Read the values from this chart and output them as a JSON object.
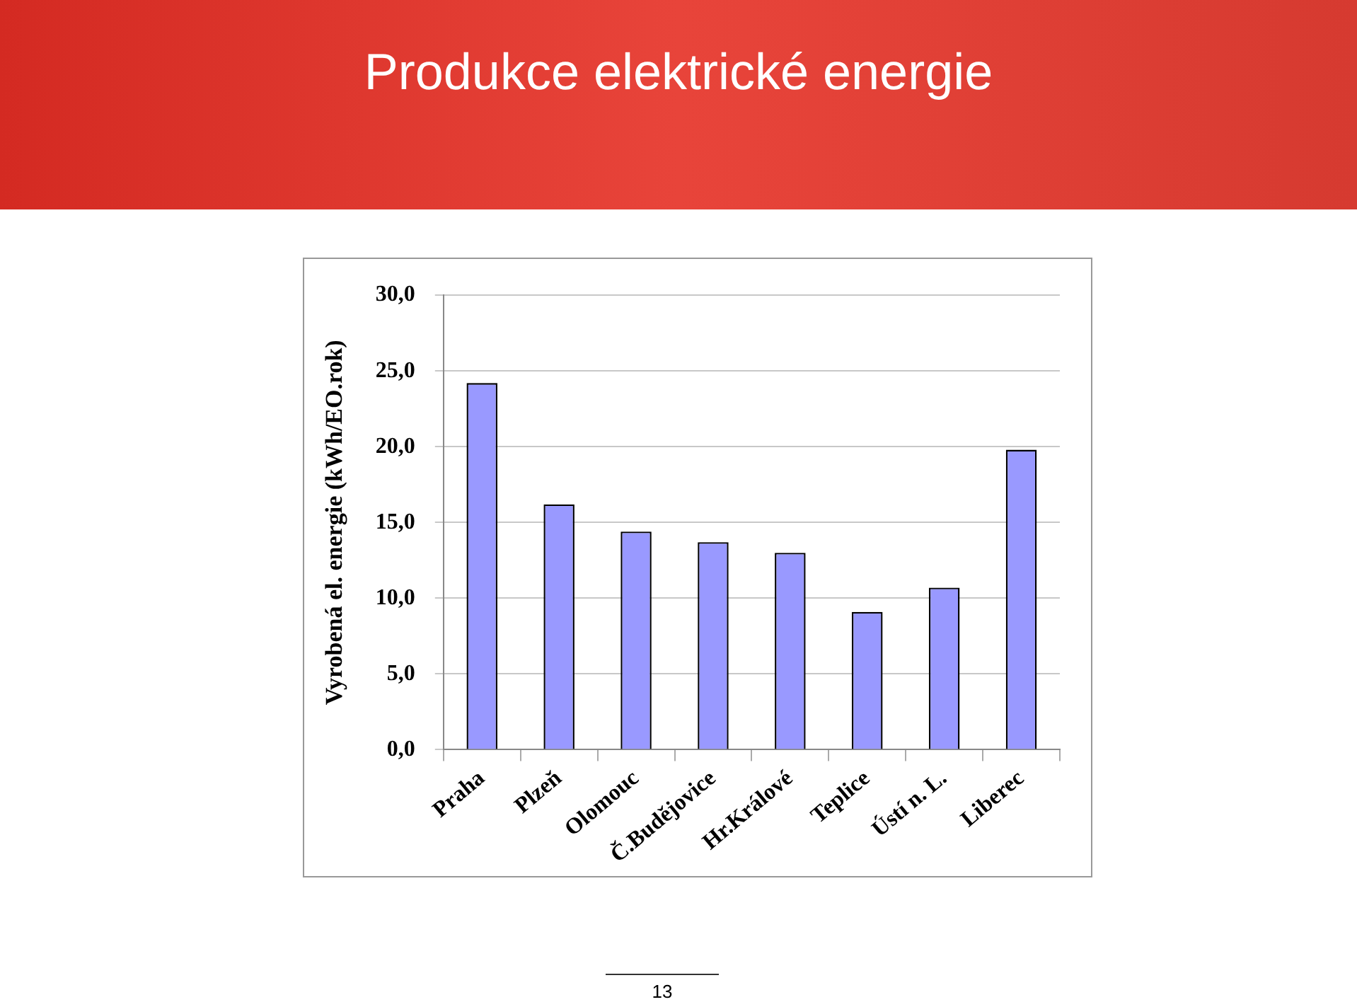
{
  "chart_data": {
    "type": "bar",
    "title": "Produkce elektrické energie",
    "ylabel": "Vyrobená el. energie (kWh/EO.rok)",
    "categories": [
      "Praha",
      "Plzeň",
      "Olomouc",
      "Č.Budějovice",
      "Hr.Králové",
      "Teplice",
      "Ústí n. L.",
      "Liberec"
    ],
    "values": [
      24.2,
      16.2,
      14.4,
      13.7,
      13.0,
      9.1,
      10.7,
      19.8
    ],
    "color": "#9999ff",
    "ylim": [
      0,
      30
    ],
    "yticks": [
      {
        "value": 0,
        "label": "0,0"
      },
      {
        "value": 5,
        "label": "5,0"
      },
      {
        "value": 10,
        "label": "10,0"
      },
      {
        "value": 15,
        "label": "15,0"
      },
      {
        "value": 20,
        "label": "20,0"
      },
      {
        "value": 25,
        "label": "25,0"
      },
      {
        "value": 30,
        "label": "30,0"
      }
    ],
    "grid": "y",
    "legend": false,
    "annotations": [
      "13"
    ]
  }
}
